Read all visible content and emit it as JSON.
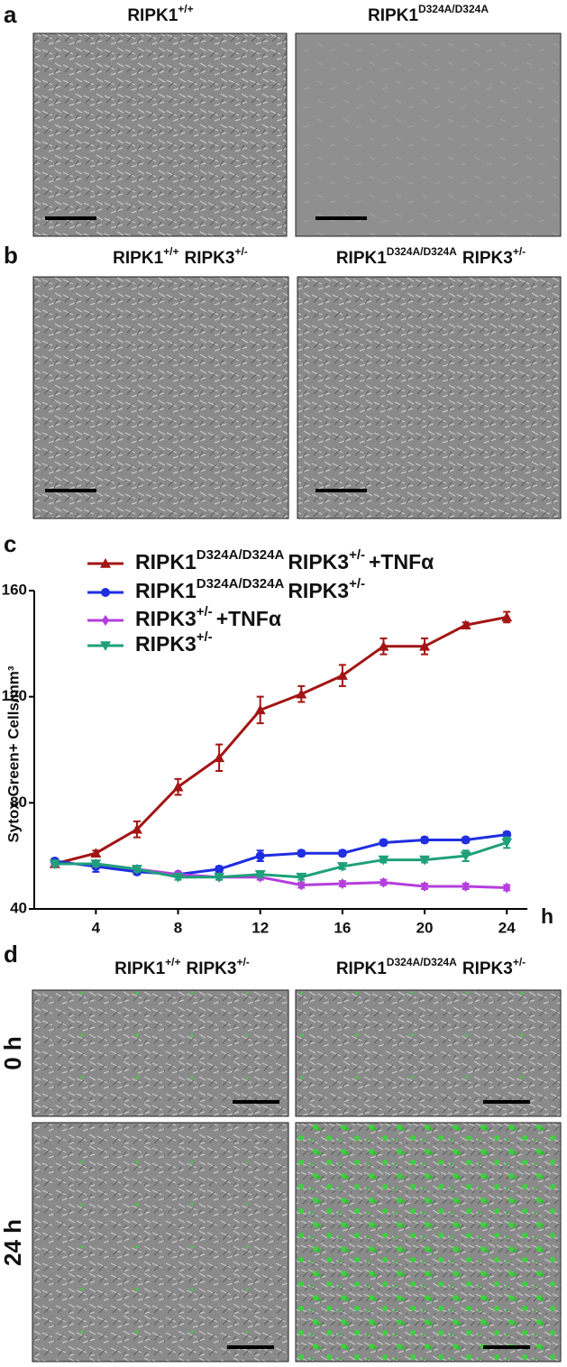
{
  "panel_a": {
    "label": "a",
    "images": [
      {
        "title": [
          {
            "text": "RIPK1",
            "sup": "+/+"
          }
        ]
      },
      {
        "title": [
          {
            "text": "RIPK1",
            "sup": "D324A/D324A"
          }
        ]
      }
    ]
  },
  "panel_b": {
    "label": "b",
    "images": [
      {
        "title": [
          {
            "text": "RIPK1",
            "sup": "+/+"
          },
          {
            "text": "RIPK3",
            "sup": "+/-"
          }
        ]
      },
      {
        "title": [
          {
            "text": "RIPK1",
            "sup": "D324A/D324A"
          },
          {
            "text": "RIPK3",
            "sup": "+/-"
          }
        ]
      }
    ]
  },
  "panel_c": {
    "label": "c"
  },
  "chart_data": {
    "type": "line",
    "y_label": "Sytox Green+ Cells/mm³",
    "x_label": "h",
    "x": [
      2,
      4,
      6,
      8,
      10,
      12,
      14,
      16,
      18,
      20,
      22,
      24
    ],
    "xlim": [
      1,
      25
    ],
    "xticks": [
      4,
      8,
      12,
      16,
      20,
      24
    ],
    "ylim": [
      40,
      160
    ],
    "yticks": [
      40,
      80,
      120,
      160
    ],
    "series": [
      {
        "name": [
          {
            "text": "RIPK1",
            "sup": "D324A/D324A"
          },
          {
            "text": "RIPK3",
            "sup": "+/-"
          },
          {
            "text": "+TNFα"
          }
        ],
        "color": "#a31515",
        "marker": "triangle-up",
        "values": [
          57,
          61,
          70,
          86,
          97,
          115,
          121,
          128,
          139,
          139,
          147,
          150
        ],
        "errors": [
          1,
          1,
          3,
          3,
          5,
          5,
          3,
          4,
          3,
          3,
          1,
          2
        ]
      },
      {
        "name": [
          {
            "text": "RIPK1",
            "sup": "D324A/D324A"
          },
          {
            "text": "RIPK3",
            "sup": "+/-"
          }
        ],
        "color": "#1f2ee0",
        "marker": "circle",
        "values": [
          58,
          56,
          54,
          53,
          55,
          60,
          61,
          61,
          65,
          66,
          66,
          68
        ],
        "errors": [
          1,
          2,
          1,
          1,
          1,
          2,
          1,
          1,
          1,
          1,
          1,
          1
        ]
      },
      {
        "name": [
          {
            "text": "RIPK3",
            "sup": "+/-"
          },
          {
            "text": "+TNFα"
          }
        ],
        "color": "#b43fdc",
        "marker": "diamond",
        "values": [
          57,
          57,
          55,
          53,
          52,
          52,
          49,
          49.5,
          50,
          48.5,
          48.5,
          48
        ],
        "errors": [
          1,
          1,
          1,
          1,
          1,
          1,
          1,
          1,
          1,
          1,
          1,
          1
        ]
      },
      {
        "name": [
          {
            "text": "RIPK3",
            "sup": "+/-"
          }
        ],
        "color": "#1fa07a",
        "marker": "triangle-down",
        "values": [
          57,
          57,
          55,
          52,
          52,
          53,
          52,
          56,
          58.5,
          58.5,
          60,
          65
        ],
        "errors": [
          1,
          1,
          1,
          1,
          1,
          1,
          1,
          1,
          1,
          1,
          2,
          2
        ]
      }
    ]
  },
  "panel_d": {
    "label": "d",
    "columns": [
      {
        "title": [
          {
            "text": "RIPK1",
            "sup": "+/+"
          },
          {
            "text": "RIPK3",
            "sup": "+/-"
          }
        ]
      },
      {
        "title": [
          {
            "text": "RIPK1",
            "sup": "D324A/D324A"
          },
          {
            "text": "RIPK3",
            "sup": "+/-"
          }
        ]
      }
    ],
    "rows": [
      "0 h",
      "24 h"
    ]
  }
}
